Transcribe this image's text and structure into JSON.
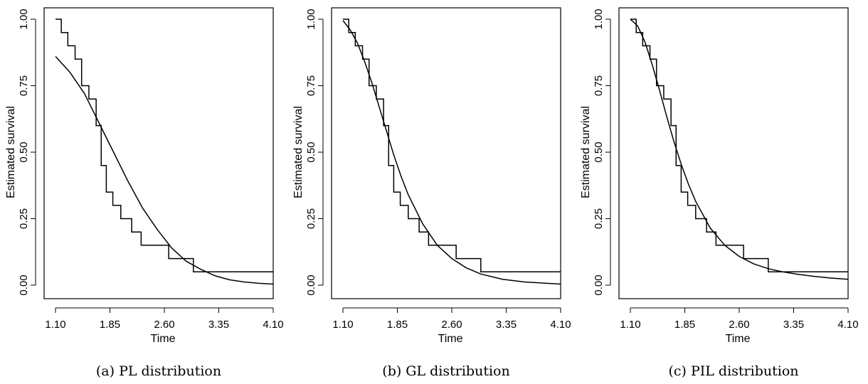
{
  "chart_data": [
    {
      "type": "line",
      "caption": "(a) PL distribution",
      "xlabel": "Time",
      "ylabel": "Estimated survival",
      "xlim": [
        1.1,
        4.1
      ],
      "ylim": [
        0,
        1
      ],
      "xticks": [
        "1.10",
        "1.85",
        "2.60",
        "3.35",
        "4.10"
      ],
      "yticks": [
        "0.00",
        "0.25",
        "0.50",
        "0.75",
        "1.00"
      ],
      "grid": false,
      "series": [
        {
          "kind": "step",
          "x": [
            1.1,
            1.18,
            1.27,
            1.37,
            1.46,
            1.56,
            1.66,
            1.73,
            1.8,
            1.89,
            2.0,
            2.15,
            2.28,
            2.66,
            3.0,
            4.1
          ],
          "y": [
            1.0,
            0.95,
            0.9,
            0.85,
            0.75,
            0.7,
            0.6,
            0.45,
            0.35,
            0.3,
            0.25,
            0.2,
            0.15,
            0.1,
            0.05,
            0.05
          ]
        },
        {
          "kind": "curve",
          "x": [
            1.1,
            1.3,
            1.5,
            1.7,
            1.9,
            2.1,
            2.3,
            2.5,
            2.7,
            2.9,
            3.1,
            3.3,
            3.5,
            3.7,
            3.9,
            4.1
          ],
          "y": [
            0.86,
            0.8,
            0.72,
            0.61,
            0.5,
            0.39,
            0.29,
            0.21,
            0.14,
            0.09,
            0.06,
            0.035,
            0.02,
            0.012,
            0.007,
            0.004
          ]
        }
      ]
    },
    {
      "type": "line",
      "caption": "(b) GL distribution",
      "xlabel": "Time",
      "ylabel": "Estimated survival",
      "xlim": [
        1.1,
        4.1
      ],
      "ylim": [
        0,
        1
      ],
      "xticks": [
        "1.10",
        "1.85",
        "2.60",
        "3.35",
        "4.10"
      ],
      "yticks": [
        "0.00",
        "0.25",
        "0.50",
        "0.75",
        "1.00"
      ],
      "grid": false,
      "series": [
        {
          "kind": "step",
          "x": [
            1.1,
            1.18,
            1.27,
            1.37,
            1.46,
            1.56,
            1.66,
            1.73,
            1.8,
            1.89,
            2.0,
            2.15,
            2.28,
            2.66,
            3.0,
            4.1
          ],
          "y": [
            1.0,
            0.95,
            0.9,
            0.85,
            0.75,
            0.7,
            0.6,
            0.45,
            0.35,
            0.3,
            0.25,
            0.2,
            0.15,
            0.1,
            0.05,
            0.05
          ]
        },
        {
          "kind": "curve",
          "x": [
            1.1,
            1.2,
            1.3,
            1.4,
            1.5,
            1.6,
            1.7,
            1.8,
            1.9,
            2.0,
            2.2,
            2.4,
            2.6,
            2.8,
            3.0,
            3.3,
            3.6,
            4.1
          ],
          "y": [
            0.995,
            0.96,
            0.91,
            0.84,
            0.76,
            0.67,
            0.58,
            0.49,
            0.41,
            0.34,
            0.23,
            0.15,
            0.1,
            0.065,
            0.042,
            0.022,
            0.012,
            0.004
          ]
        }
      ]
    },
    {
      "type": "line",
      "caption": "(c) PIL distribution",
      "xlabel": "Time",
      "ylabel": "Estimated survival",
      "xlim": [
        1.1,
        4.1
      ],
      "ylim": [
        0,
        1
      ],
      "xticks": [
        "1.10",
        "1.85",
        "2.60",
        "3.35",
        "4.10"
      ],
      "yticks": [
        "0.00",
        "0.25",
        "0.50",
        "0.75",
        "1.00"
      ],
      "grid": false,
      "series": [
        {
          "kind": "step",
          "x": [
            1.1,
            1.18,
            1.27,
            1.37,
            1.46,
            1.56,
            1.66,
            1.73,
            1.8,
            1.89,
            2.0,
            2.15,
            2.28,
            2.66,
            3.0,
            4.1
          ],
          "y": [
            1.0,
            0.95,
            0.9,
            0.85,
            0.75,
            0.7,
            0.6,
            0.45,
            0.35,
            0.3,
            0.25,
            0.2,
            0.15,
            0.1,
            0.05,
            0.05
          ]
        },
        {
          "kind": "curve",
          "x": [
            1.1,
            1.2,
            1.3,
            1.4,
            1.5,
            1.6,
            1.7,
            1.8,
            1.9,
            2.0,
            2.2,
            2.4,
            2.6,
            2.8,
            3.0,
            3.2,
            3.4,
            3.6,
            3.85,
            4.1
          ],
          "y": [
            1.0,
            0.975,
            0.915,
            0.83,
            0.735,
            0.635,
            0.54,
            0.455,
            0.38,
            0.315,
            0.215,
            0.15,
            0.108,
            0.08,
            0.062,
            0.05,
            0.041,
            0.034,
            0.027,
            0.022
          ]
        }
      ]
    }
  ]
}
